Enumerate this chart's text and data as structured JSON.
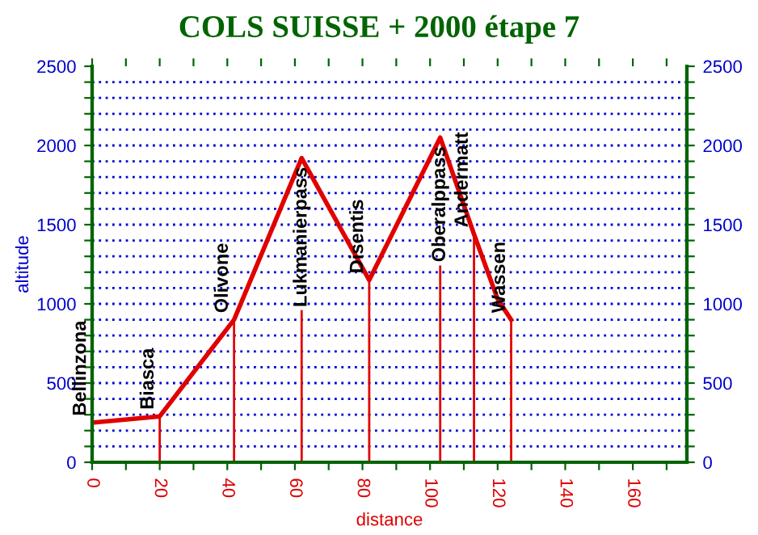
{
  "chart_data": {
    "type": "line",
    "title": "COLS SUISSE + 2000 étape 7",
    "xlabel": "distance",
    "ylabel": "altitude",
    "series": [
      {
        "color": "#e00000",
        "x": [
          0,
          20,
          42,
          62,
          82,
          103,
          113,
          120,
          124
        ],
        "values": [
          250,
          290,
          900,
          1920,
          1150,
          2050,
          1440,
          1030,
          900
        ]
      }
    ],
    "annotations": [
      {
        "text": "Bellinzona",
        "x": 0,
        "y": 250
      },
      {
        "text": "Biasca",
        "x": 20,
        "y": 290
      },
      {
        "text": "Olivone",
        "x": 42,
        "y": 900
      },
      {
        "text": "Lukmanierpass",
        "x": 62,
        "y": 1920
      },
      {
        "text": "Disentis",
        "x": 82,
        "y": 1150
      },
      {
        "text": "Oberalppass",
        "x": 103,
        "y": 2050
      },
      {
        "text": "Andermatt",
        "x": 113,
        "y": 1440
      },
      {
        "text": "Wassen",
        "x": 124,
        "y": 900
      }
    ],
    "xlim": [
      0,
      176
    ],
    "xticks": [
      0,
      {
        "value": 10,
        "label": null
      },
      20,
      {
        "value": 30,
        "label": null
      },
      40,
      {
        "value": 50,
        "label": null
      },
      60,
      {
        "value": 70,
        "label": null
      },
      80,
      {
        "value": 90,
        "label": null
      },
      100,
      {
        "value": 110,
        "label": null
      },
      120,
      {
        "value": 130,
        "label": null
      },
      140,
      {
        "value": 150,
        "label": null
      },
      160,
      {
        "value": 170,
        "label": null
      }
    ],
    "ylim": [
      0,
      2500
    ],
    "yticks": [
      0,
      {
        "value": 100,
        "label": null
      },
      {
        "value": 200,
        "label": null
      },
      {
        "value": 300,
        "label": null
      },
      {
        "value": 400,
        "label": null
      },
      500,
      {
        "value": 600,
        "label": null
      },
      {
        "value": 700,
        "label": null
      },
      {
        "value": 800,
        "label": null
      },
      {
        "value": 900,
        "label": null
      },
      1000,
      {
        "value": 1100,
        "label": null
      },
      {
        "value": 1200,
        "label": null
      },
      {
        "value": 1300,
        "label": null
      },
      {
        "value": 1400,
        "label": null
      },
      1500,
      {
        "value": 1600,
        "label": null
      },
      {
        "value": 1700,
        "label": null
      },
      {
        "value": 1800,
        "label": null
      },
      {
        "value": 1900,
        "label": null
      },
      2000,
      {
        "value": 2100,
        "label": null
      },
      {
        "value": 2200,
        "label": null
      },
      {
        "value": 2300,
        "label": null
      },
      {
        "value": 2400,
        "label": null
      },
      2500
    ],
    "y2lim": [
      0,
      2500
    ],
    "y2ticks": [
      0,
      {
        "value": 100,
        "label": null
      },
      {
        "value": 200,
        "label": null
      },
      {
        "value": 300,
        "label": null
      },
      {
        "value": 400,
        "label": null
      },
      500,
      {
        "value": 600,
        "label": null
      },
      {
        "value": 700,
        "label": null
      },
      {
        "value": 800,
        "label": null
      },
      {
        "value": 900,
        "label": null
      },
      1000,
      {
        "value": 1100,
        "label": null
      },
      {
        "value": 1200,
        "label": null
      },
      {
        "value": 1300,
        "label": null
      },
      {
        "value": 1400,
        "label": null
      },
      1500,
      {
        "value": 1600,
        "label": null
      },
      {
        "value": 1700,
        "label": null
      },
      {
        "value": 1800,
        "label": null
      },
      {
        "value": 1900,
        "label": null
      },
      2000,
      {
        "value": 2100,
        "label": null
      },
      {
        "value": 2200,
        "label": null
      },
      {
        "value": 2300,
        "label": null
      },
      {
        "value": 2400,
        "label": null
      },
      2500
    ],
    "grid": "y",
    "marker": "none",
    "line_style": "solid",
    "legend": false
  }
}
